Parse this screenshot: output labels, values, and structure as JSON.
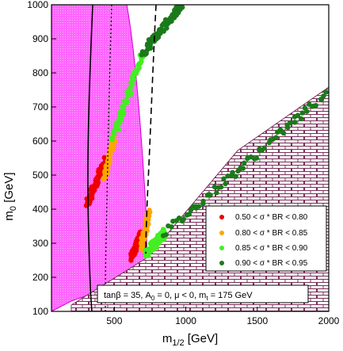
{
  "chart_data": {
    "type": "scatter",
    "xlabel_main": "m",
    "xlabel_sub": "1/2",
    "xlabel_unit": " [GeV]",
    "ylabel_main": "m",
    "ylabel_sub": "0",
    "ylabel_unit": " [GeV]",
    "xlim": [
      60,
      2000
    ],
    "ylim": [
      100,
      1000
    ],
    "xticks": [
      500,
      1000,
      1500,
      2000
    ],
    "yticks": [
      100,
      200,
      300,
      400,
      500,
      600,
      700,
      800,
      900,
      1000
    ],
    "legend": {
      "position": "bottom-right",
      "entries": [
        {
          "label": "0.50 < σ * BR < 0.80",
          "color": "#ee0000"
        },
        {
          "label": "0.80 < σ * BR < 0.85",
          "color": "#ffa500"
        },
        {
          "label": "0.85 < σ * BR < 0.90",
          "color": "#44ee22"
        },
        {
          "label": "0.90 < σ * BR < 0.95",
          "color": "#1a7a1a"
        }
      ]
    },
    "annotation": {
      "part1": "tanβ = 35, A",
      "sub1": "0",
      "part2": " = 0, μ < 0, m",
      "sub2": "t",
      "part3": " = 175 GeV"
    },
    "colors": {
      "excluded_pink": "#ff66ff",
      "excluded_brick": "#7a2f5a",
      "red": "#ee0000",
      "orange": "#ffa500",
      "light_green": "#44ee22",
      "dark_green": "#1a7a1a"
    },
    "series": [
      {
        "color": "red",
        "band": {
          "x0": 310,
          "x1": 440,
          "y0": 415,
          "y1": 545
        }
      },
      {
        "color": "red",
        "band": {
          "x0": 620,
          "x1": 690,
          "y0": 255,
          "y1": 330
        }
      },
      {
        "color": "orange",
        "band": {
          "x0": 430,
          "x1": 500,
          "y0": 490,
          "y1": 610
        }
      },
      {
        "color": "orange",
        "band": {
          "x0": 690,
          "x1": 740,
          "y0": 285,
          "y1": 390
        }
      },
      {
        "color": "light_green",
        "band": {
          "x0": 490,
          "x1": 700,
          "y0": 610,
          "y1": 860
        }
      },
      {
        "color": "light_green",
        "band": {
          "x0": 720,
          "x1": 850,
          "y0": 270,
          "y1": 330
        }
      },
      {
        "color": "dark_green",
        "band": {
          "x0": 700,
          "x1": 970,
          "y0": 860,
          "y1": 1000
        }
      },
      {
        "color": "dark_green",
        "band": {
          "x0": 850,
          "x1": 1985,
          "y0": 330,
          "y1": 740
        }
      }
    ]
  }
}
